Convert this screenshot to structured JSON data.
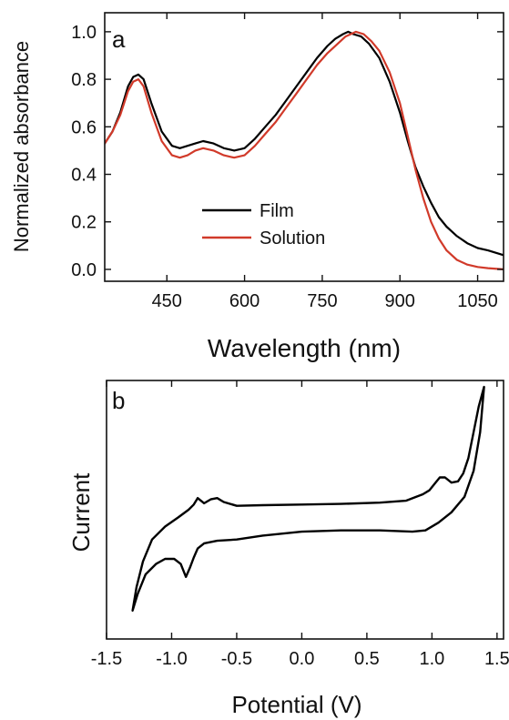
{
  "chart_data": [
    {
      "panel_label": "a",
      "type": "line",
      "xlabel": "Wavelength (nm)",
      "ylabel": "Normalized absorbance",
      "xlim": [
        330,
        1100
      ],
      "ylim": [
        -0.05,
        1.08
      ],
      "xticks": [
        450,
        600,
        750,
        900,
        1050
      ],
      "yticks": [
        0.0,
        0.2,
        0.4,
        0.6,
        0.8,
        1.0
      ],
      "xtick_labels": [
        "450",
        "600",
        "750",
        "900",
        "1050"
      ],
      "ytick_labels": [
        "0.0",
        "0.2",
        "0.4",
        "0.6",
        "0.8",
        "1.0"
      ],
      "grid": false,
      "legend_position": "center-left",
      "series": [
        {
          "name": "Film",
          "color": "#000000",
          "x": [
            330,
            345,
            360,
            375,
            385,
            395,
            405,
            420,
            440,
            460,
            475,
            490,
            505,
            520,
            540,
            560,
            580,
            600,
            620,
            640,
            660,
            680,
            700,
            720,
            740,
            760,
            775,
            790,
            800,
            810,
            825,
            840,
            860,
            880,
            900,
            915,
            930,
            945,
            960,
            975,
            990,
            1010,
            1030,
            1050,
            1070,
            1100
          ],
          "y": [
            0.53,
            0.58,
            0.66,
            0.77,
            0.81,
            0.82,
            0.8,
            0.7,
            0.58,
            0.52,
            0.51,
            0.52,
            0.53,
            0.54,
            0.53,
            0.51,
            0.5,
            0.51,
            0.55,
            0.6,
            0.65,
            0.71,
            0.77,
            0.83,
            0.89,
            0.94,
            0.97,
            0.99,
            1.0,
            0.99,
            0.98,
            0.95,
            0.89,
            0.79,
            0.66,
            0.54,
            0.43,
            0.35,
            0.28,
            0.22,
            0.18,
            0.14,
            0.11,
            0.09,
            0.08,
            0.06
          ]
        },
        {
          "name": "Solution",
          "color": "#d13a2a",
          "x": [
            330,
            345,
            360,
            375,
            385,
            395,
            405,
            420,
            440,
            460,
            475,
            490,
            505,
            520,
            540,
            560,
            580,
            600,
            620,
            640,
            660,
            680,
            700,
            720,
            740,
            760,
            780,
            795,
            805,
            815,
            830,
            845,
            860,
            880,
            900,
            915,
            930,
            945,
            960,
            975,
            990,
            1010,
            1030,
            1050,
            1070,
            1100
          ],
          "y": [
            0.53,
            0.58,
            0.65,
            0.75,
            0.79,
            0.8,
            0.77,
            0.66,
            0.54,
            0.48,
            0.47,
            0.48,
            0.5,
            0.51,
            0.5,
            0.48,
            0.47,
            0.48,
            0.52,
            0.57,
            0.62,
            0.68,
            0.74,
            0.8,
            0.86,
            0.91,
            0.95,
            0.98,
            0.99,
            1.0,
            0.99,
            0.96,
            0.92,
            0.83,
            0.7,
            0.56,
            0.42,
            0.3,
            0.2,
            0.13,
            0.08,
            0.04,
            0.02,
            0.01,
            0.005,
            0.0
          ]
        }
      ]
    },
    {
      "panel_label": "b",
      "type": "line",
      "xlabel": "Potential (V)",
      "ylabel": "Current",
      "xlim": [
        -1.5,
        1.55
      ],
      "ylim": [
        -1.0,
        1.0
      ],
      "xticks": [
        -1.5,
        -1.0,
        -0.5,
        0.0,
        0.5,
        1.0,
        1.5
      ],
      "xtick_labels": [
        "-1.5",
        "-1.0",
        "-0.5",
        "0.0",
        "0.5",
        "1.0",
        "1.5"
      ],
      "yticks": [],
      "grid": false,
      "series": [
        {
          "color": "#000000",
          "x": [
            1.4,
            1.36,
            1.32,
            1.28,
            1.24,
            1.2,
            1.15,
            1.1,
            1.06,
            1.02,
            0.98,
            0.93,
            0.88,
            0.8,
            0.6,
            0.3,
            0.0,
            -0.3,
            -0.5,
            -0.6,
            -0.65,
            -0.7,
            -0.75,
            -0.8,
            -0.83,
            -0.87,
            -0.95,
            -1.05,
            -1.15,
            -1.22,
            -1.27,
            -1.3,
            -1.26,
            -1.2,
            -1.12,
            -1.05,
            -0.98,
            -0.93,
            -0.89,
            -0.86,
            -0.83,
            -0.8,
            -0.75,
            -0.65,
            -0.5,
            -0.3,
            0.0,
            0.3,
            0.6,
            0.85,
            0.95,
            1.05,
            1.15,
            1.25,
            1.32,
            1.37,
            1.4
          ],
          "y": [
            0.95,
            0.8,
            0.6,
            0.4,
            0.28,
            0.22,
            0.21,
            0.25,
            0.25,
            0.2,
            0.15,
            0.12,
            0.1,
            0.07,
            0.055,
            0.045,
            0.04,
            0.035,
            0.03,
            0.06,
            0.09,
            0.08,
            0.05,
            0.09,
            0.04,
            0.0,
            -0.06,
            -0.13,
            -0.23,
            -0.4,
            -0.6,
            -0.78,
            -0.65,
            -0.5,
            -0.42,
            -0.38,
            -0.38,
            -0.42,
            -0.52,
            -0.45,
            -0.37,
            -0.3,
            -0.26,
            -0.24,
            -0.23,
            -0.2,
            -0.17,
            -0.16,
            -0.16,
            -0.17,
            -0.16,
            -0.1,
            -0.02,
            0.1,
            0.3,
            0.6,
            0.95
          ]
        }
      ]
    }
  ]
}
